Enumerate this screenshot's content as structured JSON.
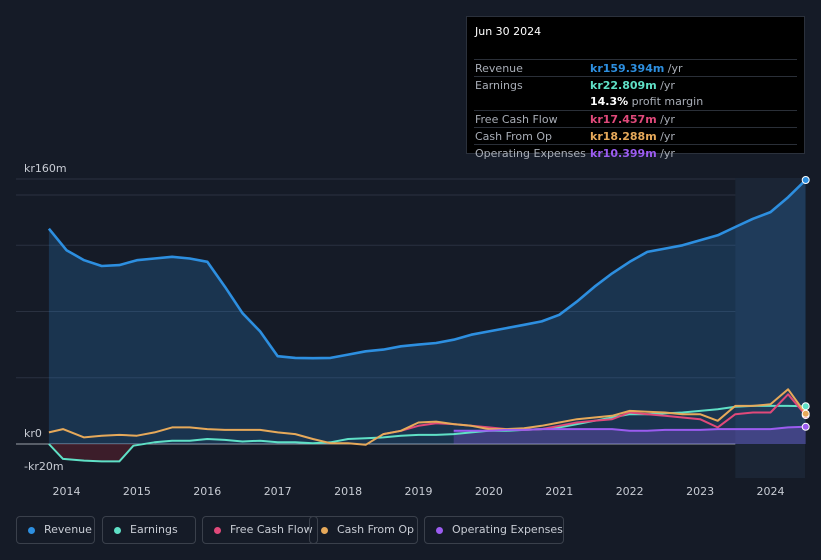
{
  "chart_data": {
    "type": "line",
    "title": "",
    "y_ticks": [
      {
        "label": "kr160m",
        "value": 160
      },
      {
        "label": "kr0",
        "value": 0
      },
      {
        "label": "-kr20m",
        "value": -20
      }
    ],
    "ylim": [
      -20,
      160
    ],
    "xlim": [
      2013.7,
      2024.5
    ],
    "x_ticks": [
      "2014",
      "2015",
      "2016",
      "2017",
      "2018",
      "2019",
      "2020",
      "2021",
      "2022",
      "2023",
      "2024"
    ],
    "x_tick_values": [
      2014,
      2015,
      2016,
      2017,
      2018,
      2019,
      2020,
      2021,
      2022,
      2023,
      2024
    ],
    "highlight_range": [
      2023.5,
      2024.5
    ],
    "series": [
      {
        "name": "Revenue",
        "color": "#2d8fe0",
        "fill": true,
        "points": [
          [
            2013.75,
            130
          ],
          [
            2014.0,
            117
          ],
          [
            2014.25,
            111
          ],
          [
            2014.5,
            107.5
          ],
          [
            2014.75,
            108
          ],
          [
            2015.0,
            111
          ],
          [
            2015.25,
            112
          ],
          [
            2015.5,
            113
          ],
          [
            2015.75,
            112
          ],
          [
            2016.0,
            110
          ],
          [
            2016.25,
            95
          ],
          [
            2016.5,
            79
          ],
          [
            2016.75,
            68
          ],
          [
            2017.0,
            53
          ],
          [
            2017.25,
            52
          ],
          [
            2017.5,
            51.8
          ],
          [
            2017.75,
            52
          ],
          [
            2018.0,
            54
          ],
          [
            2018.25,
            56
          ],
          [
            2018.5,
            57
          ],
          [
            2018.75,
            59
          ],
          [
            2019.0,
            60
          ],
          [
            2019.25,
            61
          ],
          [
            2019.5,
            63
          ],
          [
            2019.75,
            66
          ],
          [
            2020.0,
            68
          ],
          [
            2020.25,
            70
          ],
          [
            2020.5,
            72
          ],
          [
            2020.75,
            74
          ],
          [
            2021.0,
            78
          ],
          [
            2021.25,
            86
          ],
          [
            2021.5,
            95
          ],
          [
            2021.75,
            103
          ],
          [
            2022.0,
            110
          ],
          [
            2022.25,
            116
          ],
          [
            2022.5,
            118
          ],
          [
            2022.75,
            120
          ],
          [
            2023.0,
            123
          ],
          [
            2023.25,
            126
          ],
          [
            2023.5,
            131
          ],
          [
            2023.75,
            136
          ],
          [
            2024.0,
            140
          ],
          [
            2024.25,
            149
          ],
          [
            2024.5,
            159.394
          ]
        ]
      },
      {
        "name": "Earnings",
        "color": "#5fe0c6",
        "fill": false,
        "points": [
          [
            2013.75,
            0
          ],
          [
            2013.95,
            -9
          ],
          [
            2014.25,
            -10
          ],
          [
            2014.5,
            -10.5
          ],
          [
            2014.75,
            -10.5
          ],
          [
            2014.95,
            -1
          ],
          [
            2015.25,
            1
          ],
          [
            2015.5,
            2
          ],
          [
            2015.75,
            2
          ],
          [
            2016.0,
            3
          ],
          [
            2016.25,
            2.5
          ],
          [
            2016.5,
            1.5
          ],
          [
            2016.75,
            2
          ],
          [
            2017.0,
            1
          ],
          [
            2017.25,
            1
          ],
          [
            2017.5,
            0.5
          ],
          [
            2017.75,
            1
          ],
          [
            2018.0,
            3
          ],
          [
            2018.25,
            3.5
          ],
          [
            2018.5,
            4
          ],
          [
            2018.75,
            5
          ],
          [
            2019.0,
            5.5
          ],
          [
            2019.25,
            5.5
          ],
          [
            2019.5,
            6
          ],
          [
            2019.75,
            7
          ],
          [
            2020.0,
            8
          ],
          [
            2020.25,
            8
          ],
          [
            2020.5,
            8.5
          ],
          [
            2020.75,
            9
          ],
          [
            2021.0,
            10
          ],
          [
            2021.25,
            12
          ],
          [
            2021.5,
            14
          ],
          [
            2021.75,
            16
          ],
          [
            2022.0,
            18
          ],
          [
            2022.25,
            18
          ],
          [
            2022.5,
            18.5
          ],
          [
            2022.75,
            19
          ],
          [
            2023.0,
            20
          ],
          [
            2023.25,
            21
          ],
          [
            2023.5,
            22.5
          ],
          [
            2023.75,
            23
          ],
          [
            2024.0,
            23
          ],
          [
            2024.25,
            23
          ],
          [
            2024.5,
            22.809
          ]
        ]
      },
      {
        "name": "Free Cash Flow",
        "color": "#e0497a",
        "fill": false,
        "points": [
          [
            2018.5,
            6
          ],
          [
            2018.75,
            8
          ],
          [
            2019.0,
            11
          ],
          [
            2019.25,
            12.5
          ],
          [
            2019.5,
            12
          ],
          [
            2019.75,
            11
          ],
          [
            2020.0,
            10
          ],
          [
            2020.25,
            9
          ],
          [
            2020.5,
            8.5
          ],
          [
            2020.75,
            9
          ],
          [
            2021.0,
            11
          ],
          [
            2021.25,
            13
          ],
          [
            2021.5,
            14
          ],
          [
            2021.75,
            15
          ],
          [
            2022.0,
            19
          ],
          [
            2022.25,
            18
          ],
          [
            2022.5,
            17
          ],
          [
            2022.75,
            16
          ],
          [
            2023.0,
            15
          ],
          [
            2023.25,
            10
          ],
          [
            2023.5,
            18
          ],
          [
            2023.75,
            19
          ],
          [
            2024.0,
            19
          ],
          [
            2024.25,
            30
          ],
          [
            2024.5,
            17.457
          ]
        ]
      },
      {
        "name": "Cash From Op",
        "color": "#e6a95a",
        "fill": false,
        "points": [
          [
            2013.75,
            7
          ],
          [
            2013.95,
            9
          ],
          [
            2014.25,
            4
          ],
          [
            2014.5,
            5
          ],
          [
            2014.75,
            5.5
          ],
          [
            2015.0,
            5
          ],
          [
            2015.25,
            7
          ],
          [
            2015.5,
            10
          ],
          [
            2015.75,
            10
          ],
          [
            2016.0,
            9
          ],
          [
            2016.25,
            8.5
          ],
          [
            2016.5,
            8.5
          ],
          [
            2016.75,
            8.5
          ],
          [
            2017.0,
            7
          ],
          [
            2017.25,
            6
          ],
          [
            2017.5,
            3
          ],
          [
            2017.75,
            0.5
          ],
          [
            2018.0,
            0.5
          ],
          [
            2018.25,
            -0.5
          ],
          [
            2018.5,
            6
          ],
          [
            2018.75,
            8
          ],
          [
            2019.0,
            13
          ],
          [
            2019.25,
            13.5
          ],
          [
            2019.5,
            12
          ],
          [
            2019.75,
            11
          ],
          [
            2020.0,
            9
          ],
          [
            2020.25,
            9
          ],
          [
            2020.5,
            9.5
          ],
          [
            2020.75,
            11
          ],
          [
            2021.0,
            13
          ],
          [
            2021.25,
            15
          ],
          [
            2021.5,
            16
          ],
          [
            2021.75,
            17
          ],
          [
            2022.0,
            20
          ],
          [
            2022.25,
            19.5
          ],
          [
            2022.5,
            19
          ],
          [
            2022.75,
            18
          ],
          [
            2023.0,
            18
          ],
          [
            2023.25,
            14
          ],
          [
            2023.5,
            23
          ],
          [
            2023.75,
            23
          ],
          [
            2024.0,
            24
          ],
          [
            2024.25,
            33
          ],
          [
            2024.5,
            18.288
          ]
        ]
      },
      {
        "name": "Operating Expenses",
        "color": "#9b5cf0",
        "fill": true,
        "points": [
          [
            2019.5,
            8
          ],
          [
            2019.75,
            8
          ],
          [
            2020.0,
            8
          ],
          [
            2020.25,
            8.5
          ],
          [
            2020.5,
            8.5
          ],
          [
            2020.75,
            9
          ],
          [
            2021.0,
            9
          ],
          [
            2021.25,
            9
          ],
          [
            2021.5,
            9
          ],
          [
            2021.75,
            9
          ],
          [
            2022.0,
            8
          ],
          [
            2022.25,
            8
          ],
          [
            2022.5,
            8.5
          ],
          [
            2022.75,
            8.5
          ],
          [
            2023.0,
            8.5
          ],
          [
            2023.25,
            9
          ],
          [
            2023.5,
            9
          ],
          [
            2023.75,
            9
          ],
          [
            2024.0,
            9
          ],
          [
            2024.25,
            10
          ],
          [
            2024.5,
            10.399
          ]
        ]
      }
    ],
    "legend": [
      "Revenue",
      "Earnings",
      "Free Cash Flow",
      "Cash From Op",
      "Operating Expenses"
    ]
  },
  "tooltip": {
    "date": "Jun 30 2024",
    "rows": [
      {
        "label": "Revenue",
        "value": "kr159.394m",
        "unit": " /yr",
        "color": "#2d8fe0"
      },
      {
        "label": "Earnings",
        "value": "kr22.809m",
        "unit": " /yr",
        "color": "#5fe0c6"
      },
      {
        "label": "",
        "value": "14.3%",
        "unit": " profit margin",
        "color": "#ffffff"
      },
      {
        "label": "Free Cash Flow",
        "value": "kr17.457m",
        "unit": " /yr",
        "color": "#e0497a"
      },
      {
        "label": "Cash From Op",
        "value": "kr18.288m",
        "unit": " /yr",
        "color": "#e6a95a"
      },
      {
        "label": "Operating Expenses",
        "value": "kr10.399m",
        "unit": " /yr",
        "color": "#9b5cf0"
      }
    ]
  },
  "legend": {
    "items": [
      {
        "label": "Revenue",
        "color": "#2d8fe0"
      },
      {
        "label": "Earnings",
        "color": "#5fe0c6"
      },
      {
        "label": "Free Cash Flow",
        "color": "#e0497a"
      },
      {
        "label": "Cash From Op",
        "color": "#e6a95a"
      },
      {
        "label": "Operating Expenses",
        "color": "#9b5cf0"
      }
    ]
  }
}
